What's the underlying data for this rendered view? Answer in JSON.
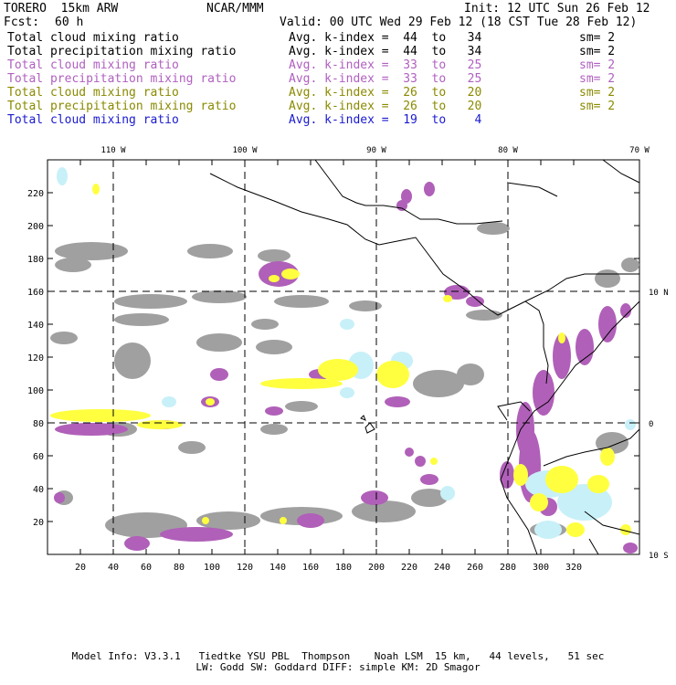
{
  "header": {
    "model": "TORERO  15km ARW",
    "center": "NCAR/MMM",
    "init": "Init: 12 UTC Sun 26 Feb 12",
    "fcst_label": "Fcst:",
    "fcst_value": "60 h",
    "valid": "Valid: 00 UTC Wed 29 Feb 12 (18 CST Tue 28 Feb 12)"
  },
  "legend": [
    {
      "name": "Total cloud mixing ratio",
      "kindex": "Avg. k-index =  44  to   34",
      "sm": "sm= 2",
      "color": "#000000"
    },
    {
      "name": "Total precipitation mixing ratio",
      "kindex": "Avg. k-index =  44  to   34",
      "sm": "sm= 2",
      "color": "#000000"
    },
    {
      "name": "Total cloud mixing ratio",
      "kindex": "Avg. k-index =  33  to   25",
      "sm": "sm= 2",
      "color": "#b060c0"
    },
    {
      "name": "Total precipitation mixing ratio",
      "kindex": "Avg. k-index =  33  to   25",
      "sm": "sm= 2",
      "color": "#b060c0"
    },
    {
      "name": "Total cloud mixing ratio",
      "kindex": "Avg. k-index =  26  to   20",
      "sm": "sm= 2",
      "color": "#8a8a00"
    },
    {
      "name": "Total precipitation mixing ratio",
      "kindex": "Avg. k-index =  26  to   20",
      "sm": "sm= 2",
      "color": "#8a8a00"
    },
    {
      "name": "Total cloud mixing ratio",
      "kindex": "Avg. k-index =  19  to    4",
      "sm": "",
      "color": "#1a1ad0"
    }
  ],
  "map": {
    "top_lon_labels": [
      "110 W",
      "100 W",
      "90 W",
      "80 W",
      "70 W"
    ],
    "right_lat_labels": [
      "10 N",
      "0",
      "10 S"
    ],
    "y_ticks": [
      "20",
      "40",
      "60",
      "80",
      "100",
      "120",
      "140",
      "160",
      "180",
      "200",
      "220"
    ],
    "x_ticks": [
      "20",
      "40",
      "60",
      "80",
      "100",
      "120",
      "140",
      "160",
      "180",
      "200",
      "220",
      "240",
      "260",
      "280",
      "300",
      "320"
    ],
    "colors": {
      "gray": "#a0a0a0",
      "purple": "#b060b8",
      "yellow": "#ffff40",
      "cyan": "#c8f0f8",
      "coast": "#000000"
    }
  },
  "footer": {
    "line1": "Model Info: V3.3.1   Tiedtke YSU PBL  Thompson    Noah LSM  15 km,   44 levels,   51 sec",
    "line2": "LW: Godd SW: Goddard DIFF: simple KM: 2D Smagor"
  }
}
